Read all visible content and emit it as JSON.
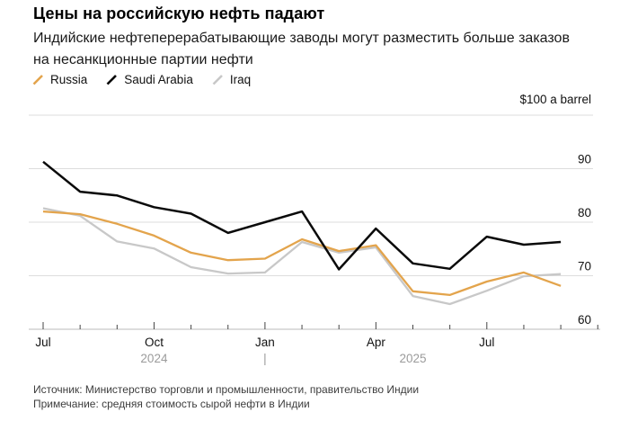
{
  "header": {
    "title": "Цены на российскую нефть падают",
    "subtitle": "Индийские нефтеперерабатывающие заводы могут разместить больше заказов на несанкционные партии нефти"
  },
  "legend": {
    "items": [
      {
        "label": "Russia",
        "color": "#E3A44C"
      },
      {
        "label": "Saudi Arabia",
        "color": "#0a0a0a"
      },
      {
        "label": "Iraq",
        "color": "#C8C8C8"
      }
    ]
  },
  "chart_data": {
    "type": "line",
    "unit_label": "$100 a barrel",
    "x": [
      "Jul 2024",
      "Aug 2024",
      "Sep 2024",
      "Oct 2024",
      "Nov 2024",
      "Dec 2024",
      "Jan 2025",
      "Feb 2025",
      "Mar 2025",
      "Apr 2025",
      "May 2025",
      "Jun 2025",
      "Jul 2025",
      "Aug 2025",
      "Sep 2025"
    ],
    "series": [
      {
        "name": "Russia",
        "color": "#E3A44C",
        "values": [
          82.0,
          81.5,
          79.7,
          77.5,
          74.3,
          72.9,
          73.2,
          76.8,
          74.6,
          75.7,
          67.1,
          66.4,
          68.9,
          70.6,
          68.1
        ]
      },
      {
        "name": "Saudi Arabia",
        "color": "#0a0a0a",
        "values": [
          91.3,
          85.7,
          85.0,
          82.8,
          81.6,
          78.0,
          80.0,
          82.0,
          71.2,
          78.8,
          72.3,
          71.3,
          77.3,
          75.8,
          76.3
        ]
      },
      {
        "name": "Iraq",
        "color": "#C8C8C8",
        "values": [
          82.6,
          81.2,
          76.4,
          75.1,
          71.6,
          70.4,
          70.6,
          76.3,
          74.3,
          75.3,
          66.2,
          64.7,
          67.2,
          69.9,
          70.3
        ]
      }
    ],
    "ylim": [
      60,
      100
    ],
    "yticks": [
      90,
      80,
      70,
      60
    ],
    "gridline_values": [
      100,
      90,
      80,
      70
    ],
    "x_major_tick_labels": [
      "Jul",
      "Oct",
      "Jan",
      "Apr",
      "Jul"
    ],
    "year_labels": [
      "2024",
      "|",
      "2025"
    ],
    "grid": "horizontal",
    "legend_position": "top-left"
  },
  "footer": {
    "source": "Источник: Министерство торговли и промышленности, правительство Индии",
    "note": "Примечание: средняя стоимость сырой нефти в Индии"
  }
}
